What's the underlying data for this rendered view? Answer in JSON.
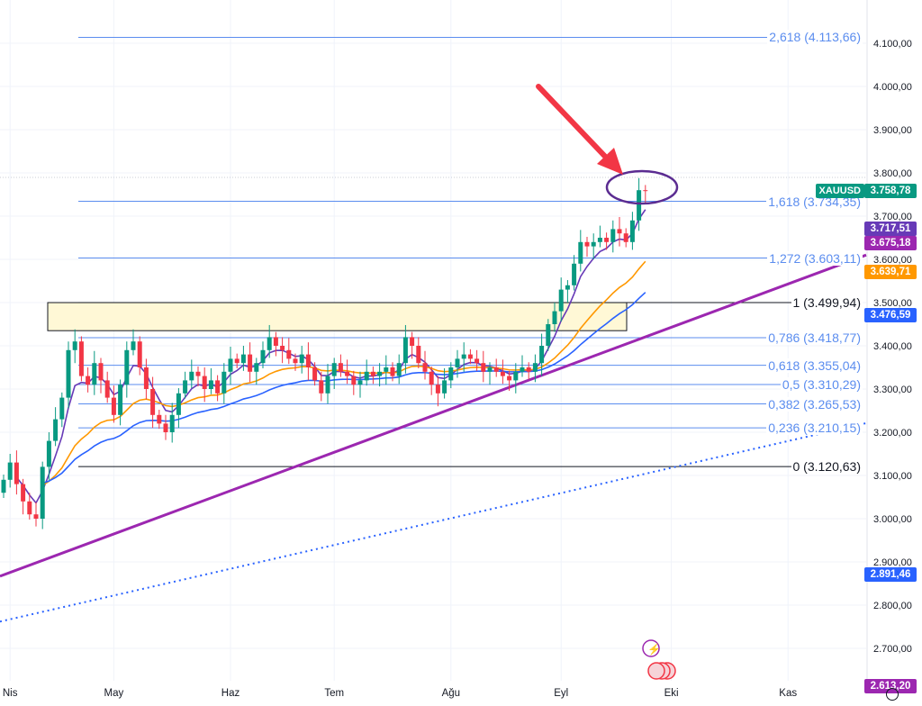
{
  "chart_data": {
    "type": "candlestick",
    "symbol": "XAUUSD",
    "ylim": [
      2650,
      4150
    ],
    "y_ticks": [
      "4.100,00",
      "4.000,00",
      "3.900,00",
      "3.800,00",
      "3.700,00",
      "3.600,00",
      "3.500,00",
      "3.400,00",
      "3.300,00",
      "3.200,00",
      "3.100,00",
      "3.000,00",
      "2.900,00",
      "2.800,00",
      "2.700,00"
    ],
    "y_tick_values": [
      4100,
      4000,
      3900,
      3800,
      3700,
      3600,
      3500,
      3400,
      3300,
      3200,
      3100,
      3000,
      2900,
      2800,
      2700
    ],
    "x_labels": [
      "Nis",
      "May",
      "Haz",
      "Tem",
      "Ağu",
      "Eyl",
      "Eki",
      "Kas"
    ],
    "x_label_index": [
      1,
      17,
      35,
      51,
      69,
      86,
      103,
      121
    ],
    "closes": [
      3090,
      3130,
      3080,
      3040,
      3010,
      3000,
      3120,
      3180,
      3230,
      3280,
      3390,
      3410,
      3330,
      3310,
      3360,
      3320,
      3280,
      3240,
      3310,
      3390,
      3410,
      3350,
      3300,
      3240,
      3220,
      3200,
      3240,
      3290,
      3320,
      3340,
      3330,
      3300,
      3320,
      3290,
      3340,
      3370,
      3360,
      3380,
      3340,
      3360,
      3390,
      3420,
      3400,
      3390,
      3370,
      3360,
      3380,
      3350,
      3320,
      3290,
      3330,
      3360,
      3340,
      3330,
      3310,
      3320,
      3340,
      3330,
      3340,
      3350,
      3330,
      3360,
      3420,
      3400,
      3360,
      3340,
      3310,
      3290,
      3320,
      3350,
      3370,
      3380,
      3370,
      3360,
      3340,
      3350,
      3340,
      3330,
      3320,
      3340,
      3350,
      3340,
      3360,
      3400,
      3450,
      3480,
      3530,
      3540,
      3590,
      3640,
      3630,
      3640,
      3650,
      3640,
      3670,
      3660,
      3640,
      3690,
      3760,
      3759
    ],
    "first_open": 3060,
    "fib_levels": [
      {
        "label": "2,618 (4.113,66)",
        "value": 4113.66,
        "color": "#5b8def"
      },
      {
        "label": "1,618 (3.734,35)",
        "value": 3734.35,
        "color": "#5b8def"
      },
      {
        "label": "1,272 (3.603,11)",
        "value": 3603.11,
        "color": "#5b8def"
      },
      {
        "label": "1 (3.499,94)",
        "value": 3499.94,
        "color": "#131722"
      },
      {
        "label": "0,786 (3.418,77)",
        "value": 3418.77,
        "color": "#5b8def"
      },
      {
        "label": "0,618 (3.355,04)",
        "value": 3355.04,
        "color": "#5b8def"
      },
      {
        "label": "0,5 (3.310,29)",
        "value": 3310.29,
        "color": "#5b8def"
      },
      {
        "label": "0,382 (3.265,53)",
        "value": 3265.53,
        "color": "#5b8def"
      },
      {
        "label": "0,236 (3.210,15)",
        "value": 3210.15,
        "color": "#5b8def"
      },
      {
        "label": "0 (3.120,63)",
        "value": 3120.63,
        "color": "#131722"
      }
    ],
    "trendline_solid": {
      "start": 2867,
      "end": 3610,
      "color": "#9c27b0"
    },
    "trendline_dotted": {
      "start": 2762,
      "end": 3221,
      "color": "#2962ff"
    },
    "resistance_zone": [
      3435,
      3499.94
    ],
    "moving_averages": [
      {
        "period": 5,
        "color": "#673ab7"
      },
      {
        "period": 20,
        "color": "#ff9800"
      },
      {
        "period": 35,
        "color": "#2962ff"
      }
    ]
  },
  "badges": [
    {
      "text": "3.758,78",
      "value": 3758.78,
      "color": "#089981"
    },
    {
      "text": "3.717,51",
      "value": 3717.51,
      "color": "#673ab7"
    },
    {
      "text": "3.675,18",
      "value": 3675.18,
      "color": "#9c27b0"
    },
    {
      "text": "3.639,71",
      "value": 3639.71,
      "color": "#ff9800"
    },
    {
      "text": "3.476,59",
      "value": 3476.59,
      "color": "#2962ff"
    },
    {
      "text": "2.891,46",
      "value": 2891.46,
      "color": "#2962ff"
    },
    {
      "text": "2.613,20",
      "value": 2613.2,
      "color": "#9c27b0"
    }
  ],
  "symbol_badge": "XAUUSD",
  "colors": {
    "up": "#089981",
    "down": "#f23645",
    "arrow": "#f23645"
  }
}
